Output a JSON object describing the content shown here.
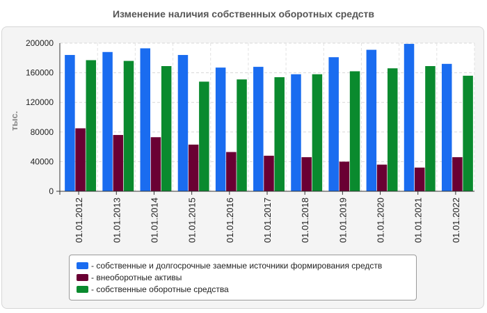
{
  "chart_data": {
    "type": "bar",
    "title": "Изменение наличия собственных оборотных средств",
    "xlabel": "",
    "ylabel": "тыс.",
    "ylim": [
      0,
      200000
    ],
    "yticks": [
      0,
      40000,
      80000,
      120000,
      160000,
      200000
    ],
    "categories": [
      "01.01.2012",
      "01.01.2013",
      "01.01.2014",
      "01.01.2015",
      "01.01.2016",
      "01.01.2017",
      "01.01.2018",
      "01.01.2019",
      "01.01.2020",
      "01.01.2021",
      "01.01.2022"
    ],
    "series": [
      {
        "name": "- собственные и долгосрочные заемные источники формирования средств",
        "color": "#1a6cf0",
        "values": [
          184000,
          188000,
          193000,
          184000,
          167000,
          168000,
          158000,
          181000,
          191000,
          199000,
          172000
        ]
      },
      {
        "name": "- внеоборотные активы",
        "color": "#6a0033",
        "values": [
          85000,
          76000,
          73000,
          63000,
          53000,
          48000,
          46000,
          40000,
          36000,
          32000,
          46000
        ]
      },
      {
        "name": "- собственные оборотные средства",
        "color": "#0a8a2e",
        "values": [
          177000,
          176000,
          169000,
          148000,
          151000,
          154000,
          158000,
          162000,
          166000,
          169000,
          156000
        ]
      }
    ],
    "grid": true,
    "legend_position": "bottom"
  }
}
